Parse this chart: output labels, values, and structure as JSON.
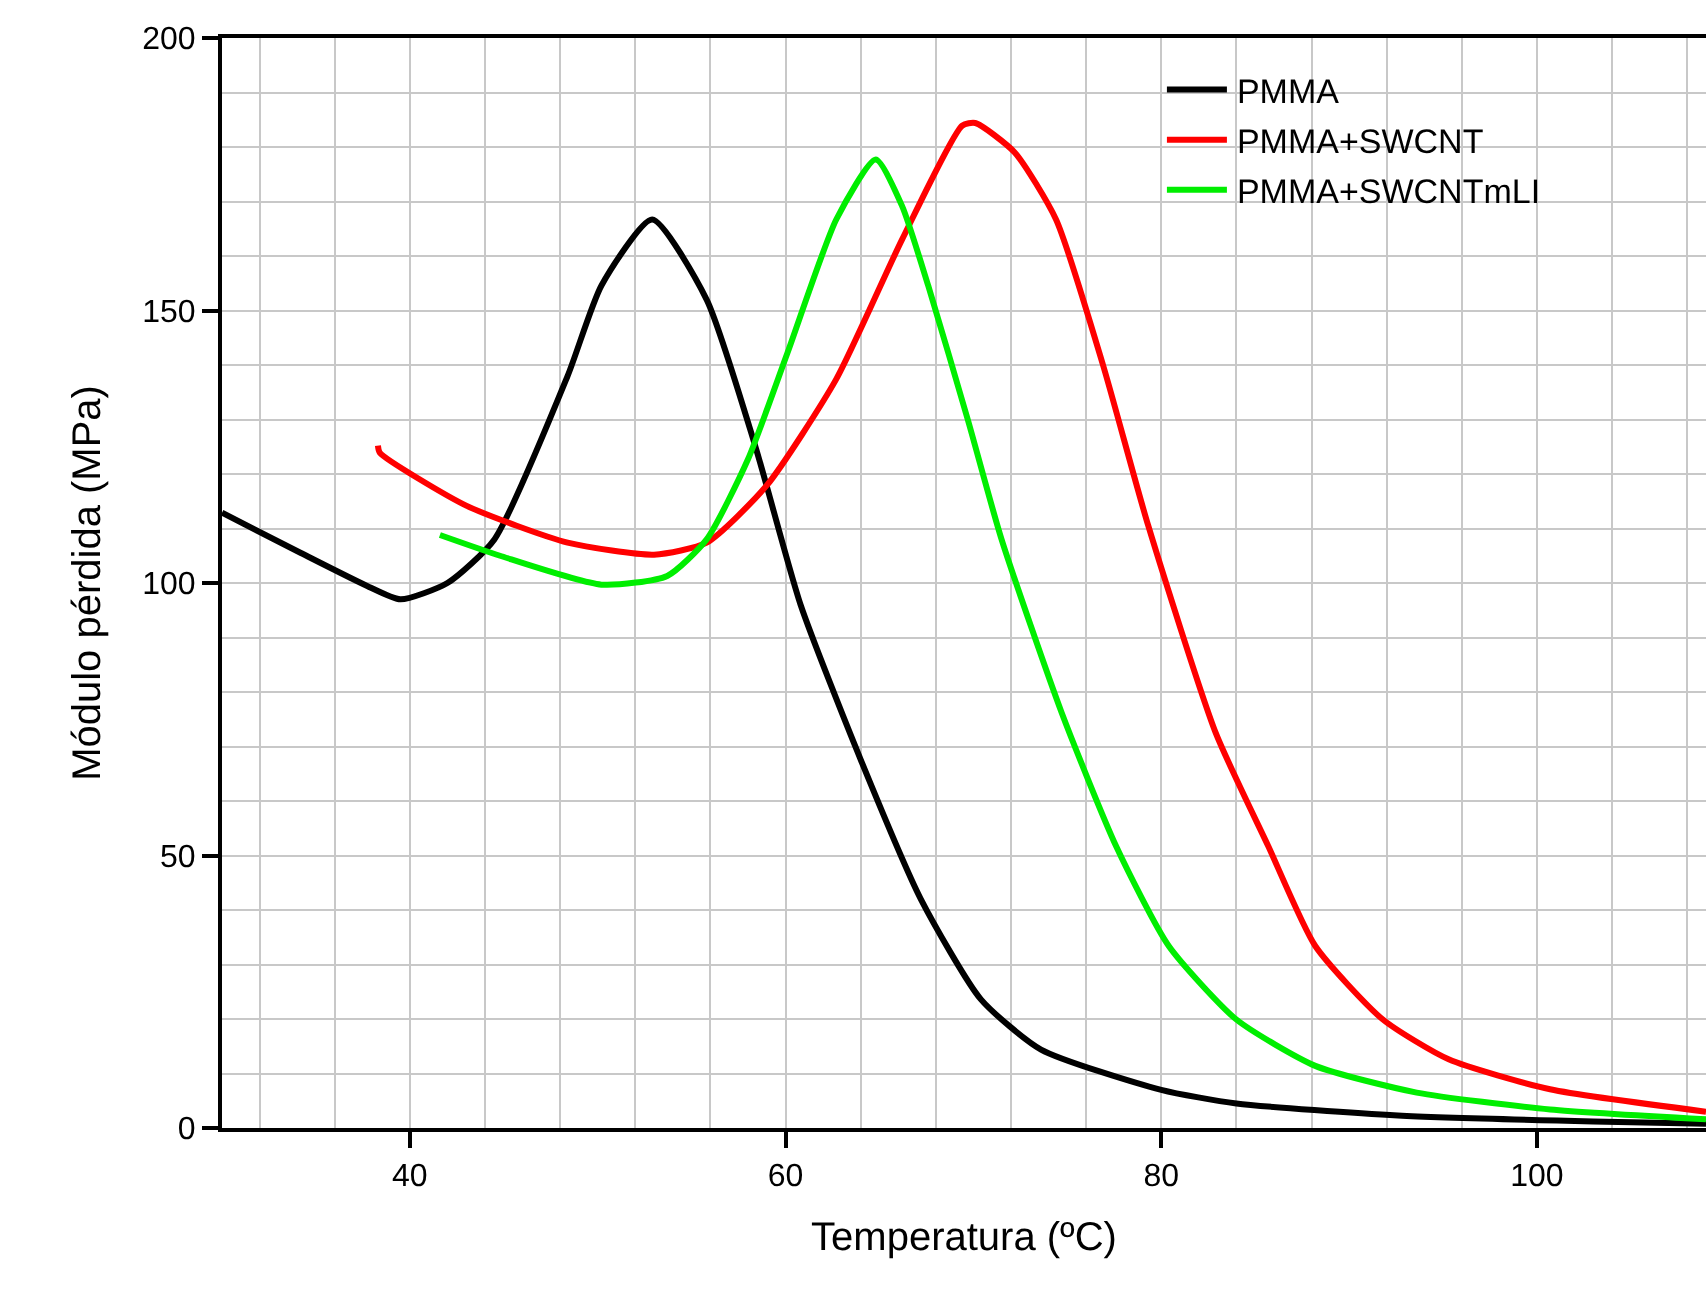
{
  "chart_data": {
    "type": "line",
    "xlabel": "Temperatura (ºC)",
    "ylabel": "Módulo pérdida (MPa)",
    "xlim": [
      30,
      109
    ],
    "ylim": [
      0,
      200
    ],
    "xticks": [
      40,
      60,
      80,
      100
    ],
    "yticks": [
      0,
      50,
      100,
      150,
      200
    ],
    "grid": true,
    "legend": "top right",
    "marker": "none",
    "line_style": "solid",
    "series": [
      {
        "name": "PMMA",
        "color": "#000000",
        "x": [
          30,
          34.2,
          37.7,
          39.5,
          42,
          44.5,
          48.4,
          50.2,
          52.9,
          55.8,
          58.4,
          60.8,
          64,
          67.2,
          70.4,
          73.6,
          80,
          84,
          92.6,
          103,
          109
        ],
        "values": [
          112.9,
          105.5,
          99.5,
          97,
          100,
          108,
          138,
          154.6,
          166.7,
          152,
          125,
          96,
          67.6,
          42,
          23.6,
          14.4,
          7,
          4.5,
          2.3,
          1.2,
          0.8
        ]
      },
      {
        "name": "PMMA+SWCNT",
        "color": "#ff0000",
        "x": [
          38.3,
          38.4,
          43,
          48.4,
          53,
          55.8,
          59,
          62.7,
          66.2,
          69.4,
          70.1,
          72.2,
          74.4,
          76.9,
          79.3,
          82.9,
          85.7,
          88.2,
          91.8,
          95.3,
          100.7,
          109
        ],
        "values": [
          125.2,
          123.9,
          114.2,
          107.4,
          105.2,
          107.4,
          117.9,
          137.4,
          163,
          183.9,
          184.4,
          179,
          166.7,
          140,
          110.6,
          72.5,
          51.7,
          33.4,
          19.9,
          12.6,
          7.1,
          3
        ]
      },
      {
        "name": "PMMA+SWCNTmLI",
        "color": "#00ee00",
        "x": [
          41.6,
          44.8,
          50.2,
          53.7,
          55.8,
          58,
          60.1,
          62.7,
          64.8,
          66.2,
          67.6,
          69.7,
          71.5,
          74.7,
          77.6,
          80.4,
          84,
          88.2,
          93.6,
          100.7,
          109
        ],
        "values": [
          108.8,
          105,
          99.7,
          101.3,
          108,
          122.7,
          142.2,
          166.7,
          177.7,
          169.2,
          154.5,
          130,
          108,
          76.2,
          51.7,
          33.4,
          19.9,
          11.4,
          6.5,
          3.4,
          1.6
        ]
      }
    ]
  }
}
